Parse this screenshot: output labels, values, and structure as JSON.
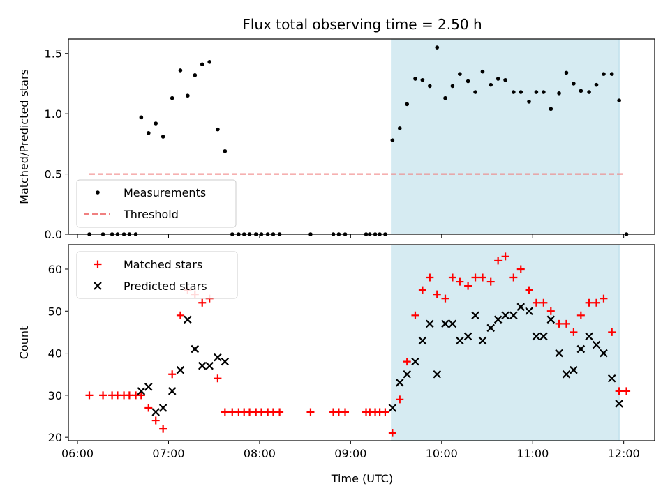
{
  "chart_data": [
    {
      "type": "scatter",
      "title": "Flux total observing time = 2.50 h",
      "xlabel": "",
      "ylabel": "Matched/Predicted stars",
      "ylim": [
        0,
        1.62
      ],
      "yticks": [
        0.0,
        0.5,
        1.0,
        1.5
      ],
      "ytick_labels": [
        "0.0",
        "0.5",
        "1.0",
        "1.5"
      ],
      "xticks": [
        "06:00",
        "07:00",
        "08:00",
        "09:00",
        "10:00",
        "11:00",
        "12:00"
      ],
      "x_unit": "hours UTC",
      "xlim": [
        5.9,
        12.34
      ],
      "shaded_interval": [
        "09:27",
        "11:57"
      ],
      "legend_position": "lower-left",
      "grid": false,
      "series": [
        {
          "name": "Measurements",
          "kind": "points",
          "color": "#000000",
          "x": [
            6.13,
            6.28,
            6.38,
            6.44,
            6.51,
            6.57,
            6.64,
            6.7,
            6.78,
            6.86,
            6.94,
            7.04,
            7.13,
            7.21,
            7.29,
            7.37,
            7.45,
            7.54,
            7.62,
            7.7,
            7.77,
            7.83,
            7.89,
            7.96,
            8.02,
            8.09,
            8.15,
            8.22,
            8.56,
            8.81,
            8.87,
            8.94,
            9.17,
            9.21,
            9.27,
            9.32,
            9.38,
            9.46,
            9.54,
            9.62,
            9.71,
            9.79,
            9.87,
            9.95,
            10.04,
            10.12,
            10.2,
            10.29,
            10.37,
            10.45,
            10.54,
            10.62,
            10.7,
            10.79,
            10.87,
            10.96,
            11.04,
            11.12,
            11.2,
            11.29,
            11.37,
            11.45,
            11.53,
            11.62,
            11.7,
            11.78,
            11.87,
            11.95,
            12.03
          ],
          "y": [
            0.0,
            0.0,
            0.0,
            0.0,
            0.0,
            0.0,
            0.0,
            0.97,
            0.84,
            0.92,
            0.81,
            1.13,
            1.36,
            1.15,
            1.32,
            1.41,
            1.43,
            0.87,
            0.69,
            0.0,
            0.0,
            0.0,
            0.0,
            0.0,
            0.0,
            0.0,
            0.0,
            0.0,
            0.0,
            0.0,
            0.0,
            0.0,
            0.0,
            0.0,
            0.0,
            0.0,
            0.0,
            0.78,
            0.88,
            1.08,
            1.29,
            1.28,
            1.23,
            1.55,
            1.13,
            1.23,
            1.33,
            1.27,
            1.18,
            1.35,
            1.24,
            1.29,
            1.28,
            1.18,
            1.18,
            1.1,
            1.18,
            1.18,
            1.04,
            1.17,
            1.34,
            1.25,
            1.19,
            1.18,
            1.24,
            1.33,
            1.33,
            1.11,
            0.0
          ]
        },
        {
          "name": "Threshold",
          "kind": "dashed-line",
          "color": "#f08080",
          "x": [
            6.13,
            12.0
          ],
          "y": [
            0.5,
            0.5
          ]
        }
      ]
    },
    {
      "type": "scatter",
      "xlabel": "Time (UTC)",
      "ylabel": "Count",
      "ylim": [
        19.2,
        65.8
      ],
      "yticks": [
        20,
        30,
        40,
        50,
        60
      ],
      "ytick_labels": [
        "20",
        "30",
        "40",
        "50",
        "60"
      ],
      "xticks": [
        "06:00",
        "07:00",
        "08:00",
        "09:00",
        "10:00",
        "11:00",
        "12:00"
      ],
      "x_unit": "hours UTC",
      "xlim": [
        5.9,
        12.34
      ],
      "shaded_interval": [
        "09:27",
        "11:57"
      ],
      "legend_position": "upper-left",
      "grid": false,
      "series": [
        {
          "name": "Matched stars",
          "marker": "plus",
          "color": "#ff0000",
          "x": [
            6.13,
            6.28,
            6.38,
            6.44,
            6.51,
            6.57,
            6.64,
            6.7,
            6.78,
            6.86,
            6.94,
            7.04,
            7.13,
            7.21,
            7.29,
            7.37,
            7.45,
            7.54,
            7.62,
            7.7,
            7.77,
            7.83,
            7.89,
            7.96,
            8.02,
            8.09,
            8.15,
            8.22,
            8.56,
            8.81,
            8.87,
            8.94,
            9.17,
            9.21,
            9.27,
            9.32,
            9.38,
            9.46,
            9.54,
            9.62,
            9.71,
            9.79,
            9.87,
            9.95,
            10.04,
            10.12,
            10.2,
            10.29,
            10.37,
            10.45,
            10.54,
            10.62,
            10.7,
            10.79,
            10.87,
            10.96,
            11.04,
            11.12,
            11.2,
            11.29,
            11.37,
            11.45,
            11.53,
            11.62,
            11.7,
            11.78,
            11.87,
            11.95,
            12.03
          ],
          "y": [
            30,
            30,
            30,
            30,
            30,
            30,
            30,
            30,
            27,
            24,
            22,
            35,
            49,
            55,
            54,
            52,
            53,
            34,
            26,
            26,
            26,
            26,
            26,
            26,
            26,
            26,
            26,
            26,
            26,
            26,
            26,
            26,
            26,
            26,
            26,
            26,
            26,
            21,
            29,
            38,
            49,
            55,
            58,
            54,
            53,
            58,
            57,
            56,
            58,
            58,
            57,
            62,
            63,
            58,
            60,
            55,
            52,
            52,
            50,
            47,
            47,
            45,
            49,
            52,
            52,
            53,
            45,
            31,
            31
          ]
        },
        {
          "name": "Predicted stars",
          "marker": "x",
          "color": "#000000",
          "x": [
            6.7,
            6.78,
            6.86,
            6.94,
            7.04,
            7.13,
            7.21,
            7.29,
            7.37,
            7.45,
            7.54,
            7.62,
            9.46,
            9.54,
            9.62,
            9.71,
            9.79,
            9.87,
            9.95,
            10.04,
            10.12,
            10.2,
            10.29,
            10.37,
            10.45,
            10.54,
            10.62,
            10.7,
            10.79,
            10.87,
            10.96,
            11.04,
            11.12,
            11.2,
            11.29,
            11.37,
            11.45,
            11.53,
            11.62,
            11.7,
            11.78,
            11.87,
            11.95
          ],
          "y": [
            31,
            32,
            26,
            27,
            31,
            36,
            48,
            41,
            37,
            37,
            39,
            38,
            27,
            33,
            35,
            38,
            43,
            47,
            35,
            47,
            47,
            43,
            44,
            49,
            43,
            46,
            48,
            49,
            49,
            51,
            50,
            44,
            44,
            48,
            40,
            35,
            36,
            41,
            44,
            42,
            40,
            34,
            28
          ]
        }
      ]
    }
  ]
}
